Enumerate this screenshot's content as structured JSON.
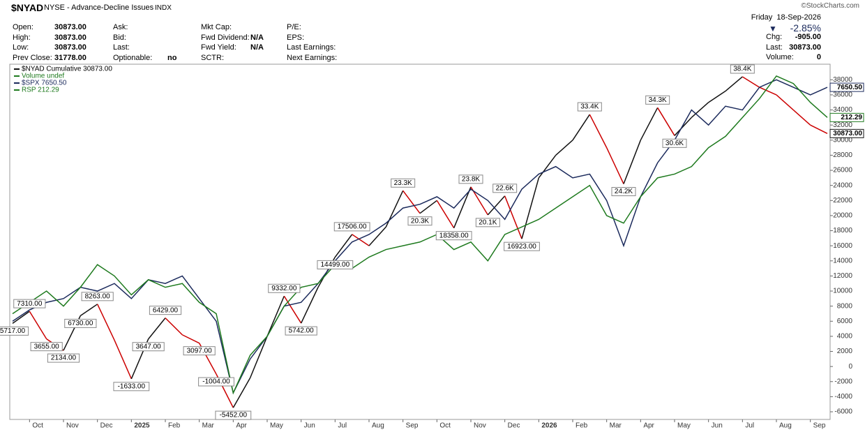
{
  "header": {
    "symbol": "$NYAD",
    "name": "NYSE - Advance-Decline Issues",
    "exchange": "INDX",
    "source": "©StockCharts.com",
    "date": "Friday  18-Sep-2026",
    "change_pct": "-2.85%",
    "stats": [
      {
        "label": "Chg:",
        "value": "-905.00"
      },
      {
        "label": "Last:",
        "value": "30873.00"
      },
      {
        "label": "Volume:",
        "value": "0"
      }
    ],
    "columns": [
      [
        {
          "label": "Open:",
          "value": "30873.00"
        },
        {
          "label": "High:",
          "value": "30873.00"
        },
        {
          "label": "Low:",
          "value": "30873.00"
        },
        {
          "label": "Prev Close:",
          "value": "31778.00"
        }
      ],
      [
        {
          "label": "Ask:"
        },
        {
          "label": "Bid:"
        },
        {
          "label": "Last:"
        },
        {
          "label": "Optionable:",
          "value": "no"
        }
      ],
      [
        {
          "label": "Mkt Cap:"
        },
        {
          "label": "Fwd Dividend:",
          "value": "N/A"
        },
        {
          "label": "Fwd Yield:",
          "value": "N/A"
        },
        {
          "label": "SCTR:"
        }
      ],
      [
        {
          "label": "P/E:"
        },
        {
          "label": "EPS:"
        },
        {
          "label": "Last Earnings:"
        },
        {
          "label": "Next Earnings:"
        }
      ]
    ]
  },
  "chart_data": {
    "type": "line",
    "legend": "upper-left",
    "volume_legend": "Volume undef",
    "categories": [
      null,
      "Oct",
      null,
      "Nov",
      null,
      "Dec",
      null,
      "2025",
      null,
      "Feb",
      null,
      "Mar",
      null,
      "Apr",
      null,
      "May",
      null,
      "Jun",
      null,
      "Jul",
      null,
      "Aug",
      null,
      "Sep",
      null,
      "Oct",
      null,
      "Nov",
      null,
      "Dec",
      null,
      "2026",
      null,
      "Feb",
      null,
      "Mar",
      null,
      "Apr",
      null,
      "May",
      null,
      "Jun",
      null,
      "Jul",
      null,
      "Aug",
      null,
      "Sep",
      null
    ],
    "ylim": [
      -7200,
      39600
    ],
    "yticks": [
      -6000,
      -4000,
      -2000,
      0,
      2000,
      4000,
      6000,
      8000,
      10000,
      12000,
      14000,
      16000,
      18000,
      20000,
      22000,
      24000,
      26000,
      28000,
      30000,
      32000,
      34000,
      36000,
      38000
    ],
    "series": [
      {
        "name": "$NYAD Cumulative 30873.00",
        "color": "#111111",
        "down_color": "#cc0000",
        "last_label": "30873.00",
        "values": [
          5717,
          7310,
          3655,
          2134,
          6730,
          8263,
          3500,
          -1633,
          3647,
          6429,
          4200,
          3097,
          -1004,
          -5452,
          -1500,
          4000,
          9332,
          5742,
          10500,
          14499,
          17506,
          16000,
          18500,
          23300,
          20300,
          22000,
          18358,
          23800,
          20100,
          22600,
          16923,
          25000,
          28000,
          30000,
          33400,
          29000,
          24200,
          30000,
          34300,
          30600,
          33000,
          35000,
          36500,
          38400,
          37000,
          36000,
          34000,
          32000,
          30873
        ],
        "value_labels": [
          "5717.00",
          "7310.00",
          "3655.00",
          "2134.00",
          "6730.00",
          "8263.00",
          null,
          "-1633.00",
          "3647.00",
          "6429.00",
          null,
          "3097.00",
          "-1004.00",
          "-5452.00",
          null,
          null,
          "9332.00",
          "5742.00",
          null,
          "14499.00",
          "17506.00",
          null,
          null,
          "23.3K",
          "20.3K",
          null,
          "18358.00",
          "23.8K",
          "20.1K",
          "22.6K",
          "16923.00",
          null,
          null,
          null,
          "33.4K",
          null,
          "24.2K",
          null,
          "34.3K",
          "30.6K",
          null,
          null,
          null,
          "38.4K",
          null,
          null,
          null,
          null,
          null
        ]
      },
      {
        "name": "$SPX 7650.50",
        "color": "#1b2a5c",
        "last_label": "7650.50",
        "values": [
          6000,
          7500,
          8500,
          9000,
          10500,
          10000,
          11000,
          9000,
          11500,
          11000,
          12000,
          9000,
          6000,
          -3500,
          1000,
          4000,
          8000,
          8500,
          11000,
          14000,
          16500,
          17500,
          19000,
          21000,
          21500,
          22500,
          21000,
          23500,
          22000,
          19500,
          23500,
          25500,
          26500,
          25000,
          25500,
          22000,
          16000,
          22500,
          27000,
          30000,
          34000,
          32000,
          34500,
          34000,
          37000,
          38000,
          37000,
          36000,
          37000
        ]
      },
      {
        "name": "RSP 212.29",
        "color": "#1e7a1e",
        "last_label": "212.29",
        "values": [
          7000,
          8500,
          10000,
          8000,
          10500,
          13500,
          12000,
          9500,
          11500,
          10500,
          11000,
          8500,
          7000,
          -3500,
          1500,
          4000,
          8000,
          10500,
          11000,
          13500,
          13000,
          14500,
          15500,
          16000,
          16500,
          17500,
          15500,
          16500,
          14000,
          17500,
          18500,
          19500,
          21000,
          22500,
          24000,
          20000,
          19000,
          22500,
          25000,
          25500,
          26500,
          29000,
          30500,
          33000,
          35500,
          38500,
          37500,
          35000,
          33000
        ]
      }
    ]
  }
}
